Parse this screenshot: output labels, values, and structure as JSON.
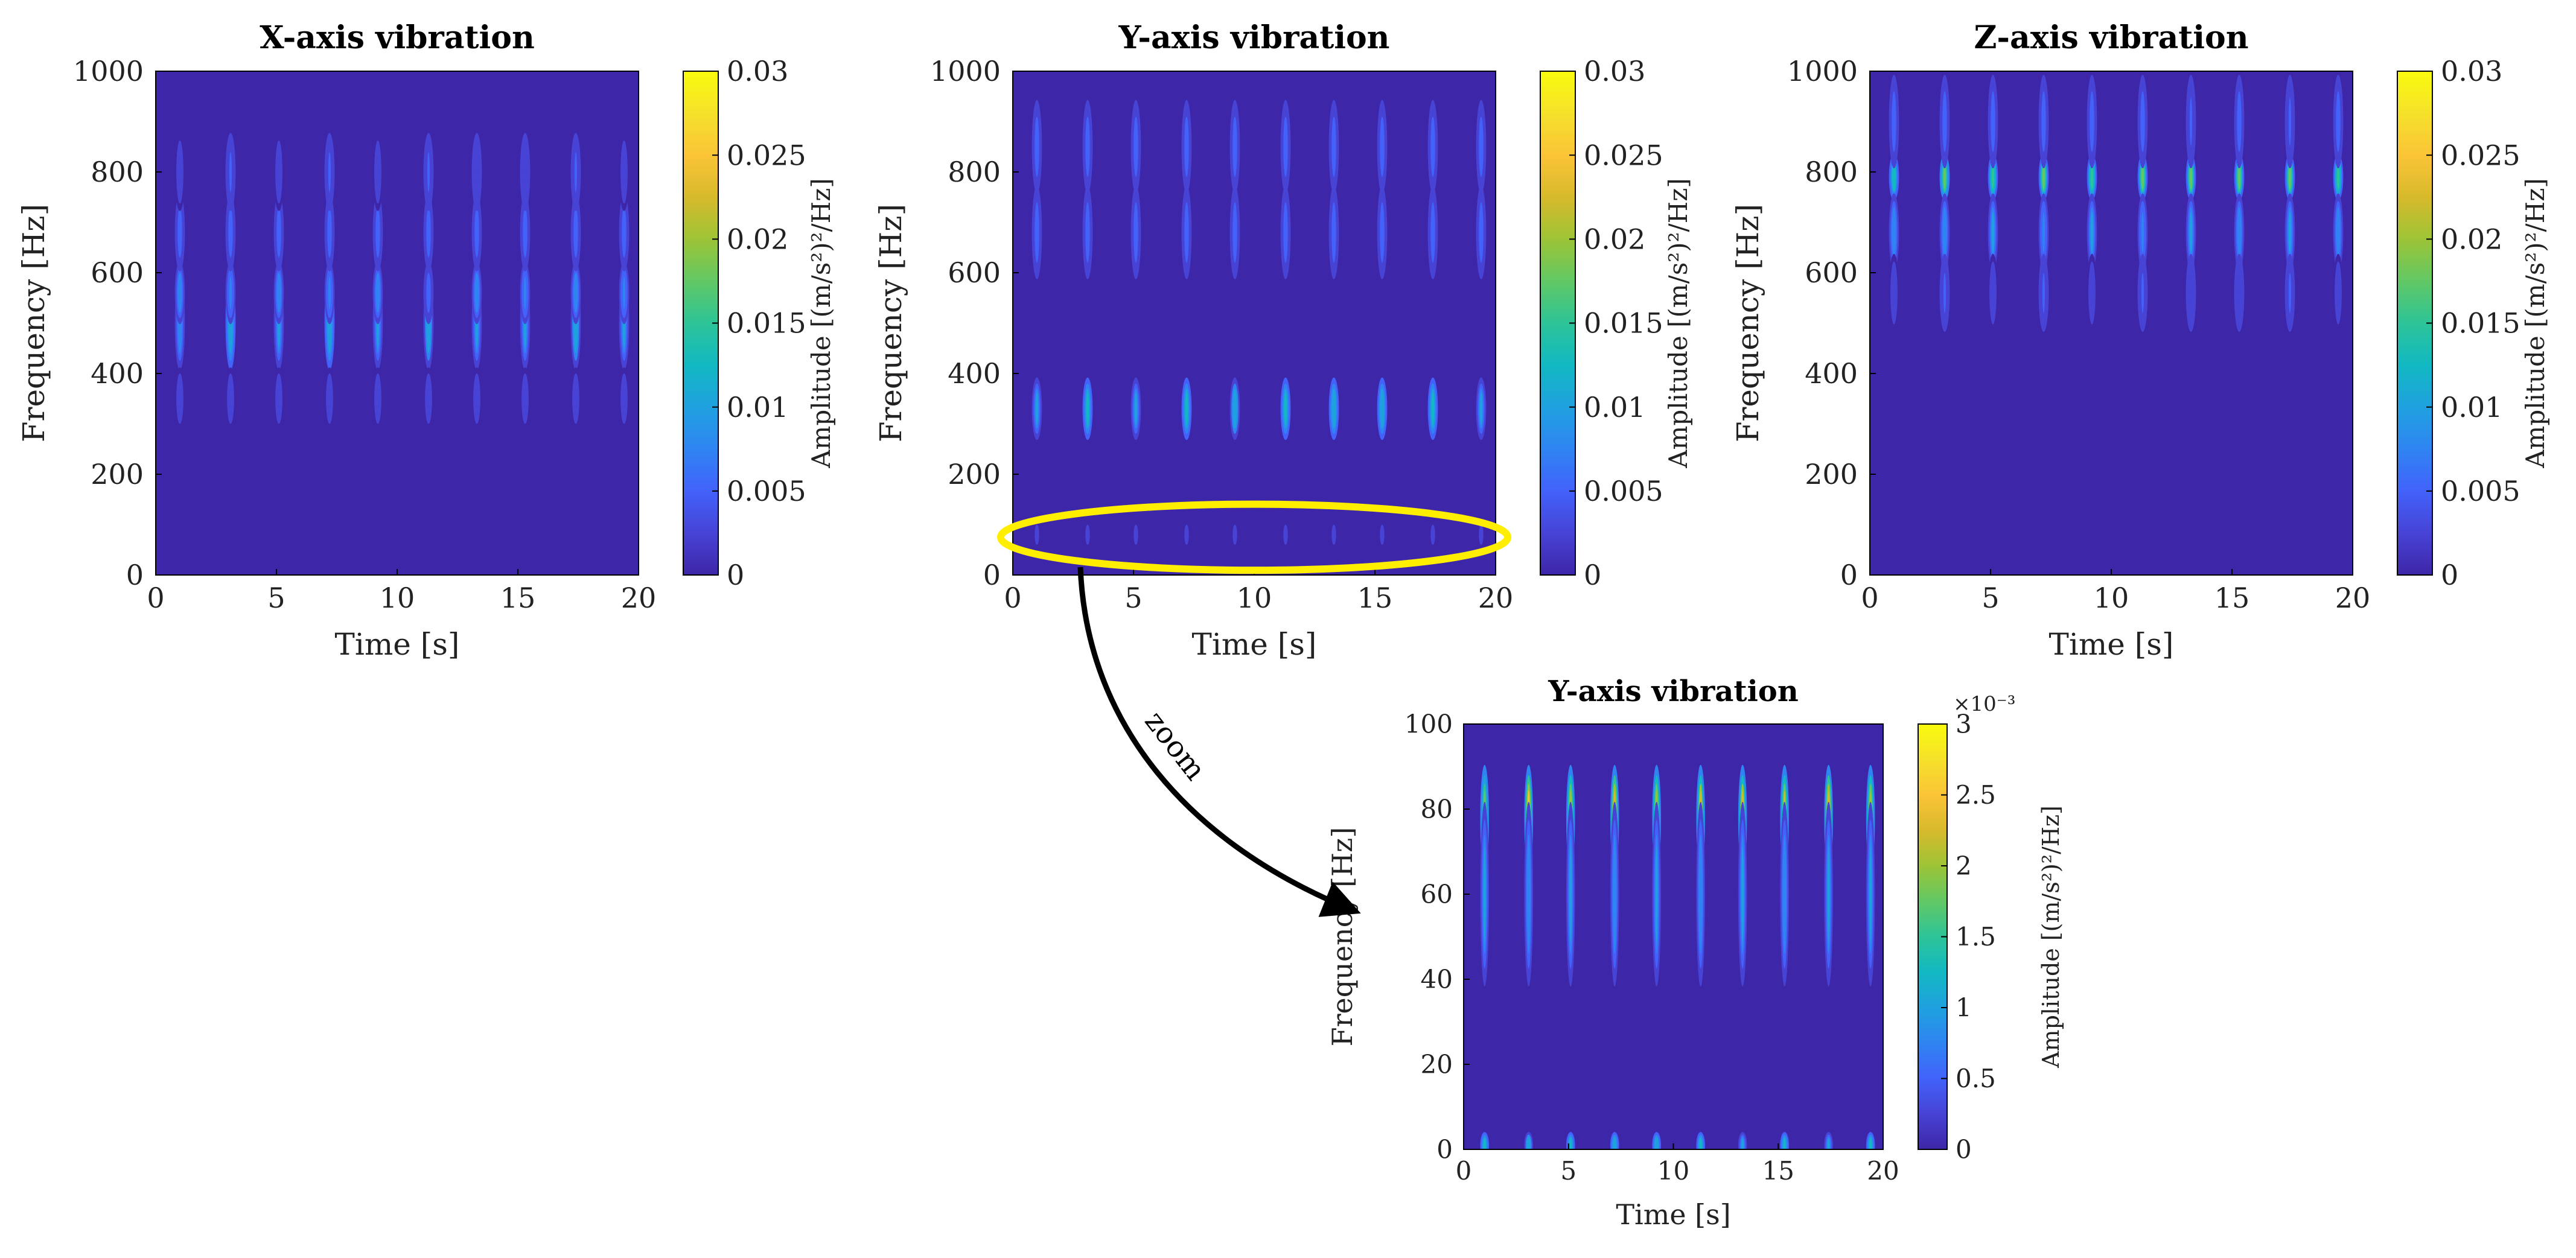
{
  "figure": {
    "zoom_label": "zoom",
    "colormap": [
      "#3e26a8",
      "#4743d5",
      "#4262fa",
      "#2f84f2",
      "#1fa1df",
      "#12b8c2",
      "#2dc498",
      "#61c865",
      "#9dc436",
      "#d7ba2b",
      "#fbc437",
      "#f5e12a",
      "#f9fb0e"
    ],
    "background_color": "#3e26a8",
    "highlight_color": "#ffee00"
  },
  "chart_data": [
    {
      "type": "heatmap",
      "title": "X-axis vibration",
      "xlabel": "Time [s]",
      "ylabel": "Frequency [Hz]",
      "xlim": [
        0,
        20
      ],
      "ylim": [
        0,
        1000
      ],
      "xticks": [
        0,
        5,
        10,
        15,
        20
      ],
      "yticks": [
        0,
        200,
        400,
        600,
        800,
        1000
      ],
      "colorbar": {
        "label": "Amplitude [(m/s²)²/Hz]",
        "range": [
          0,
          0.03
        ],
        "ticks": [
          "0",
          "0.005",
          "0.01",
          "0.015",
          "0.02",
          "0.025",
          "0.03"
        ],
        "exponent": ""
      },
      "ridge_times": [
        1.0,
        3.1,
        5.1,
        7.2,
        9.2,
        11.3,
        13.3,
        15.3,
        17.4,
        19.4
      ],
      "bands": [
        {
          "f": 500,
          "amp": 0.011,
          "width": 60
        },
        {
          "f": 560,
          "amp": 0.008,
          "width": 40
        },
        {
          "f": 680,
          "amp": 0.006,
          "width": 50
        },
        {
          "f": 800,
          "amp": 0.004,
          "width": 50
        },
        {
          "f": 350,
          "amp": 0.003,
          "width": 40
        }
      ]
    },
    {
      "type": "heatmap",
      "title": "Y-axis vibration",
      "xlabel": "Time [s]",
      "ylabel": "Frequency [Hz]",
      "xlim": [
        0,
        20
      ],
      "ylim": [
        0,
        1000
      ],
      "xticks": [
        0,
        5,
        10,
        15,
        20
      ],
      "yticks": [
        0,
        200,
        400,
        600,
        800,
        1000
      ],
      "colorbar": {
        "label": "Amplitude [(m/s²)²/Hz]",
        "range": [
          0,
          0.03
        ],
        "ticks": [
          "0",
          "0.005",
          "0.01",
          "0.015",
          "0.02",
          "0.025",
          "0.03"
        ],
        "exponent": ""
      },
      "ridge_times": [
        1.0,
        3.1,
        5.1,
        7.2,
        9.2,
        11.3,
        13.3,
        15.3,
        17.4,
        19.4
      ],
      "bands": [
        {
          "f": 330,
          "amp": 0.012,
          "width": 40
        },
        {
          "f": 680,
          "amp": 0.006,
          "width": 60
        },
        {
          "f": 850,
          "amp": 0.006,
          "width": 60
        },
        {
          "f": 80,
          "amp": 0.002,
          "width": 20
        }
      ],
      "highlight": {
        "center_time": 10,
        "center_freq": 75,
        "half_width_time": 10,
        "half_height_freq": 80
      }
    },
    {
      "type": "heatmap",
      "title": "Z-axis vibration",
      "xlabel": "Time [s]",
      "ylabel": "Frequency [Hz]",
      "xlim": [
        0,
        20
      ],
      "ylim": [
        0,
        1000
      ],
      "xticks": [
        0,
        5,
        10,
        15,
        20
      ],
      "yticks": [
        0,
        200,
        400,
        600,
        800,
        1000
      ],
      "colorbar": {
        "label": "Amplitude [(m/s²)²/Hz]",
        "range": [
          0,
          0.03
        ],
        "ticks": [
          "0",
          "0.005",
          "0.01",
          "0.015",
          "0.02",
          "0.025",
          "0.03"
        ],
        "exponent": ""
      },
      "ridge_times": [
        1.0,
        3.1,
        5.1,
        7.2,
        9.2,
        11.3,
        13.3,
        15.3,
        17.4,
        19.4
      ],
      "bands": [
        {
          "f": 790,
          "amp": 0.018,
          "width": 30
        },
        {
          "f": 680,
          "amp": 0.009,
          "width": 50
        },
        {
          "f": 900,
          "amp": 0.005,
          "width": 60
        },
        {
          "f": 560,
          "amp": 0.004,
          "width": 50
        }
      ]
    },
    {
      "type": "heatmap",
      "title": "Y-axis vibration",
      "xlabel": "Time [s]",
      "ylabel": "Frequency [Hz]",
      "xlim": [
        0,
        20
      ],
      "ylim": [
        0,
        100
      ],
      "xticks": [
        0,
        5,
        10,
        15,
        20
      ],
      "yticks": [
        0,
        20,
        40,
        60,
        80,
        100
      ],
      "colorbar": {
        "label": "Amplitude [(m/s²)²/Hz]",
        "range": [
          0,
          0.003
        ],
        "ticks": [
          "0",
          "0.5",
          "1",
          "1.5",
          "2",
          "2.5",
          "3"
        ],
        "exponent": "×10⁻³"
      },
      "ridge_times": [
        1.0,
        3.1,
        5.1,
        7.2,
        9.2,
        11.3,
        13.3,
        15.3,
        17.4,
        19.4
      ],
      "bands": [
        {
          "f": 78,
          "amp": 0.0024,
          "width": 8
        },
        {
          "f": 60,
          "amp": 0.001,
          "width": 14
        },
        {
          "f": 1,
          "amp": 0.0012,
          "width": 2
        }
      ]
    }
  ]
}
